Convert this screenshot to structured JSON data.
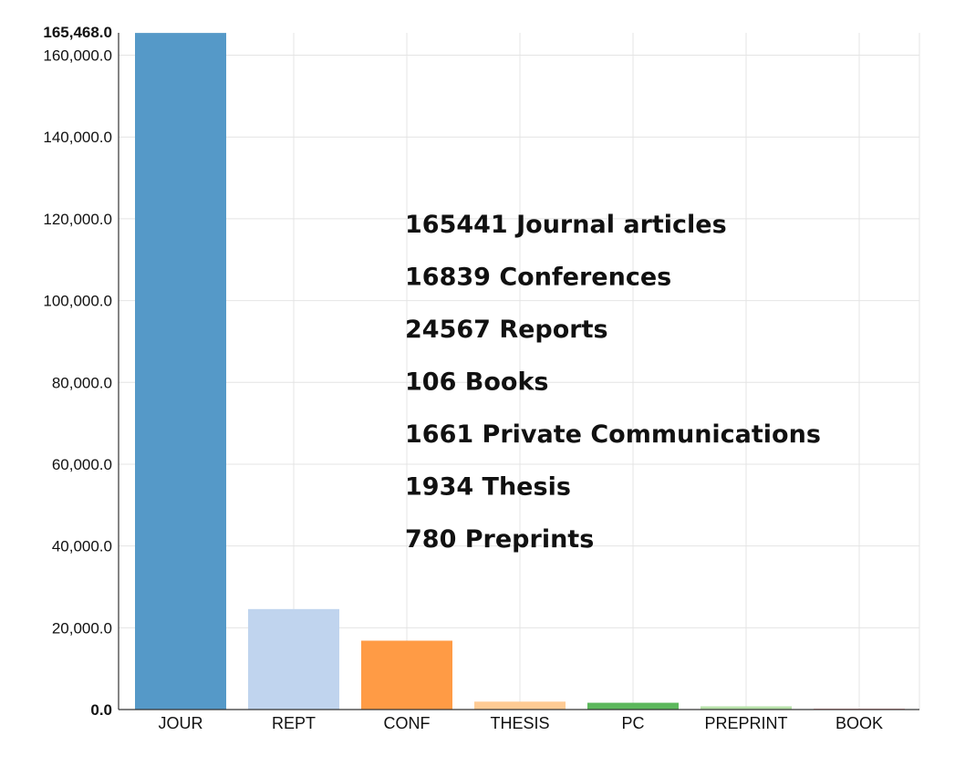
{
  "chart_data": {
    "type": "bar",
    "categories": [
      "JOUR",
      "REPT",
      "CONF",
      "THESIS",
      "PC",
      "PREPRINT",
      "BOOK"
    ],
    "values": [
      165441,
      24567,
      16839,
      1934,
      1661,
      780,
      106
    ],
    "colors": [
      "#5599c8",
      "#c0d4ee",
      "#ff9b45",
      "#ffcb94",
      "#5cb85c",
      "#b6e0a8",
      "#f2a6a6"
    ],
    "ylim": [
      0,
      165468
    ],
    "y_ticks": [
      0,
      20000,
      40000,
      60000,
      80000,
      100000,
      120000,
      140000,
      160000
    ],
    "y_tick_labels": [
      "0.0",
      "20,000.0",
      "40,000.0",
      "60,000.0",
      "80,000.0",
      "100,000.0",
      "120,000.0",
      "140,000.0",
      "160,000.0"
    ],
    "y_max_label": "165,468.0",
    "grid": true,
    "annotations": [
      "165441 Journal articles",
      "16839 Conferences",
      "24567 Reports",
      "106 Books",
      "1661 Private Communications",
      "1934 Thesis",
      "780 Preprints"
    ]
  }
}
